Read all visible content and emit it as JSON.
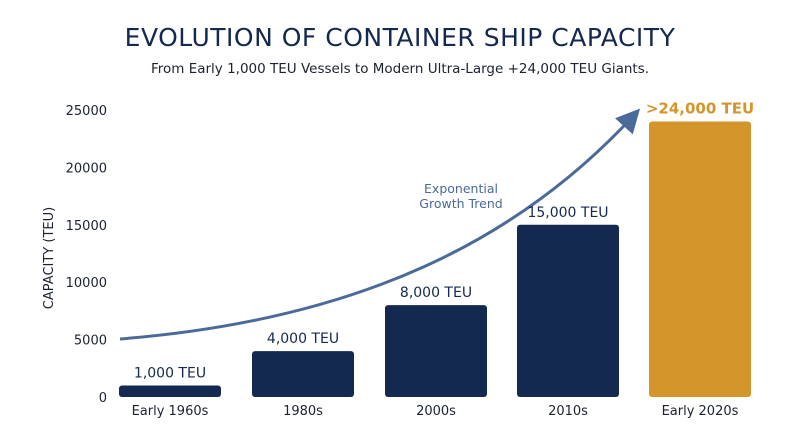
{
  "chart_data": {
    "type": "bar",
    "title": "EVOLUTION OF CONTAINER SHIP CAPACITY",
    "subtitle": "From Early 1,000 TEU Vessels to Modern Ultra-Large +24,000 TEU Giants.",
    "xlabel": "",
    "ylabel": "CAPACITY (TEU)",
    "categories": [
      "Early 1960s",
      "1980s",
      "2000s",
      "2010s",
      "Early 2020s"
    ],
    "values": [
      1000,
      4000,
      8000,
      15000,
      24000
    ],
    "data_labels": [
      "1,000 TEU",
      "4,000 TEU",
      "8,000 TEU",
      "15,000 TEU",
      ">24,000 TEU"
    ],
    "ylim": [
      0,
      25000
    ],
    "yticks": [
      0,
      5000,
      10000,
      15000,
      20000,
      25000
    ],
    "grid": false,
    "legend": "none",
    "highlight_index": 4,
    "annotation": {
      "line1": "Exponential",
      "line2": "Growth Trend"
    },
    "colors": {
      "bar": "#14294f",
      "highlight": "#d4952b",
      "arrow": "#4a6a99",
      "title": "#14294f"
    }
  }
}
